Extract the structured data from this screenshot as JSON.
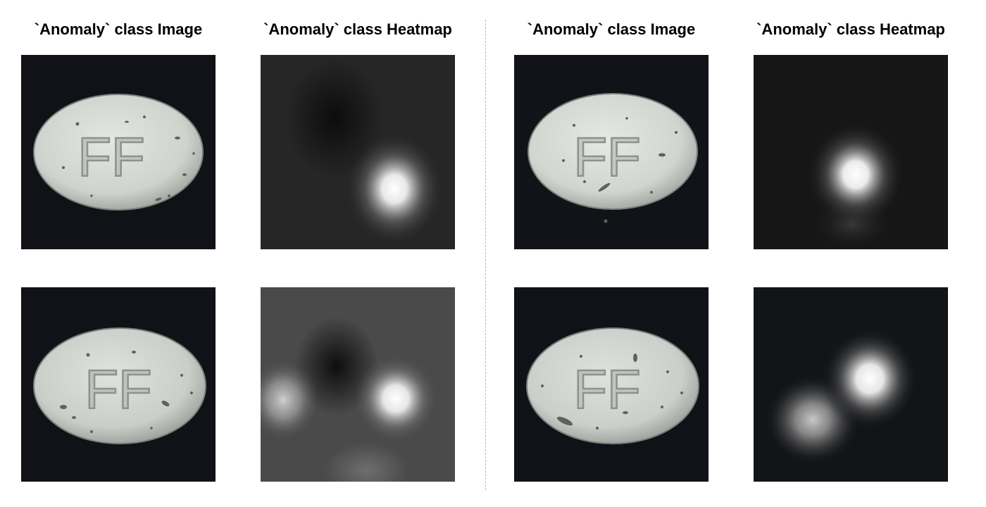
{
  "titles": {
    "left_image": "`Anomaly` class Image",
    "left_heatmap": "`Anomaly` class Heatmap",
    "right_image": "`Anomaly` class Image",
    "right_heatmap": "`Anomaly` class Heatmap"
  },
  "pill_marking": "FF",
  "colors": {
    "background": "#ffffff",
    "photo_background": "#101218",
    "pill_fill": "#d4d6d2",
    "heatmap_hot": "#ffffff",
    "divider": "#b9b9b9"
  }
}
